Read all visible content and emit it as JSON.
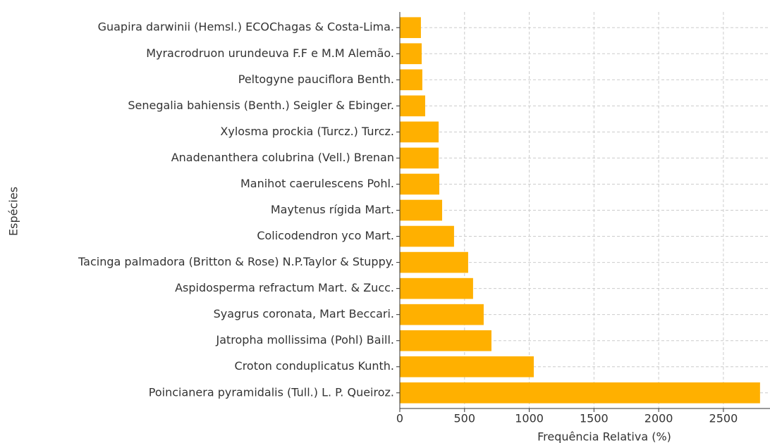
{
  "chart_data": {
    "type": "barh",
    "categories": [
      "Guapira darwinii (Hemsl.) ECOChagas & Costa-Lima.",
      "Myracrodruon urundeuva F.F e M.M Alemão.",
      "Peltogyne pauciflora Benth.",
      "Senegalia bahiensis (Benth.) Seigler & Ebinger.",
      "Xylosma prockia (Turcz.) Turcz.",
      "Anadenanthera colubrina (Vell.) Brenan",
      "Manihot caerulescens Pohl.",
      "Maytenus rígida Mart.",
      "Colicodendron yco Mart.",
      "Tacinga palmadora (Britton & Rose) N.P.Taylor & Stuppy.",
      "Aspidosperma refractum Mart. & Zucc.",
      "Syagrus coronata, Mart Beccari.",
      "Jatropha mollissima (Pohl) Baill.",
      "Croton conduplicatus Kunth.",
      "Poincianera pyramidalis (Tull.) L. P. Queiroz."
    ],
    "values": [
      163,
      169,
      174,
      196,
      300,
      300,
      305,
      327,
      419,
      528,
      566,
      648,
      708,
      1035,
      2783
    ],
    "color": "#ffb000",
    "xlabel": "Frequência Relativa (%)",
    "ylabel": "Espécies",
    "xlim": [
      0,
      2860
    ],
    "xticks": [
      0,
      500,
      1000,
      1500,
      2000,
      2500
    ],
    "grid": true
  }
}
